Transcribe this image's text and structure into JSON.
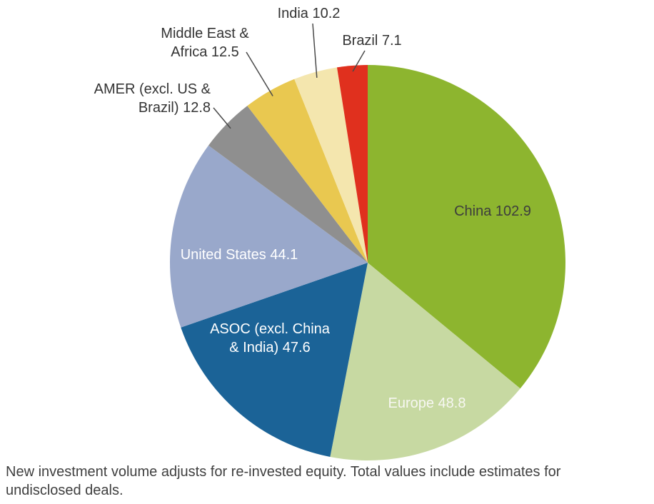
{
  "chart_data": {
    "type": "pie",
    "title": "",
    "direction": "clockwise",
    "start_angle_deg": 0,
    "legend_position": "none",
    "slices": [
      {
        "name": "China",
        "value": 102.9,
        "label": "China 102.9",
        "color": "#8DB52F",
        "label_color": "#3D3D3D",
        "label_position": "inside"
      },
      {
        "name": "Europe",
        "value": 48.8,
        "label": "Europe 48.8",
        "color": "#C7D9A2",
        "label_color": "#F7F7F2",
        "label_position": "inside"
      },
      {
        "name": "ASOC (excl. China & India)",
        "value": 47.6,
        "label": "ASOC (excl. China & India) 47.6",
        "color": "#1B6397",
        "label_color": "#FFFFFF",
        "label_position": "inside"
      },
      {
        "name": "United States",
        "value": 44.1,
        "label": "United States 44.1",
        "color": "#99A8CB",
        "label_color": "#FFFFFF",
        "label_position": "inside"
      },
      {
        "name": "AMER (excl. US & Brazil)",
        "value": 12.8,
        "label": "AMER (excl. US & Brazil) 12.8",
        "color": "#8F8F8F",
        "label_color": "#333333",
        "label_position": "outside"
      },
      {
        "name": "Middle East & Africa",
        "value": 12.5,
        "label": "Middle East & Africa 12.5",
        "color": "#E9C850",
        "label_color": "#333333",
        "label_position": "outside"
      },
      {
        "name": "India",
        "value": 10.2,
        "label": "India 10.2",
        "color": "#F4E6AE",
        "label_color": "#333333",
        "label_position": "outside"
      },
      {
        "name": "Brazil",
        "value": 7.1,
        "label": "Brazil 7.1",
        "color": "#E0301E",
        "label_color": "#333333",
        "label_position": "outside"
      }
    ]
  },
  "footnote": "New investment volume adjusts for re-invested equity. Total values include estimates for undisclosed deals."
}
